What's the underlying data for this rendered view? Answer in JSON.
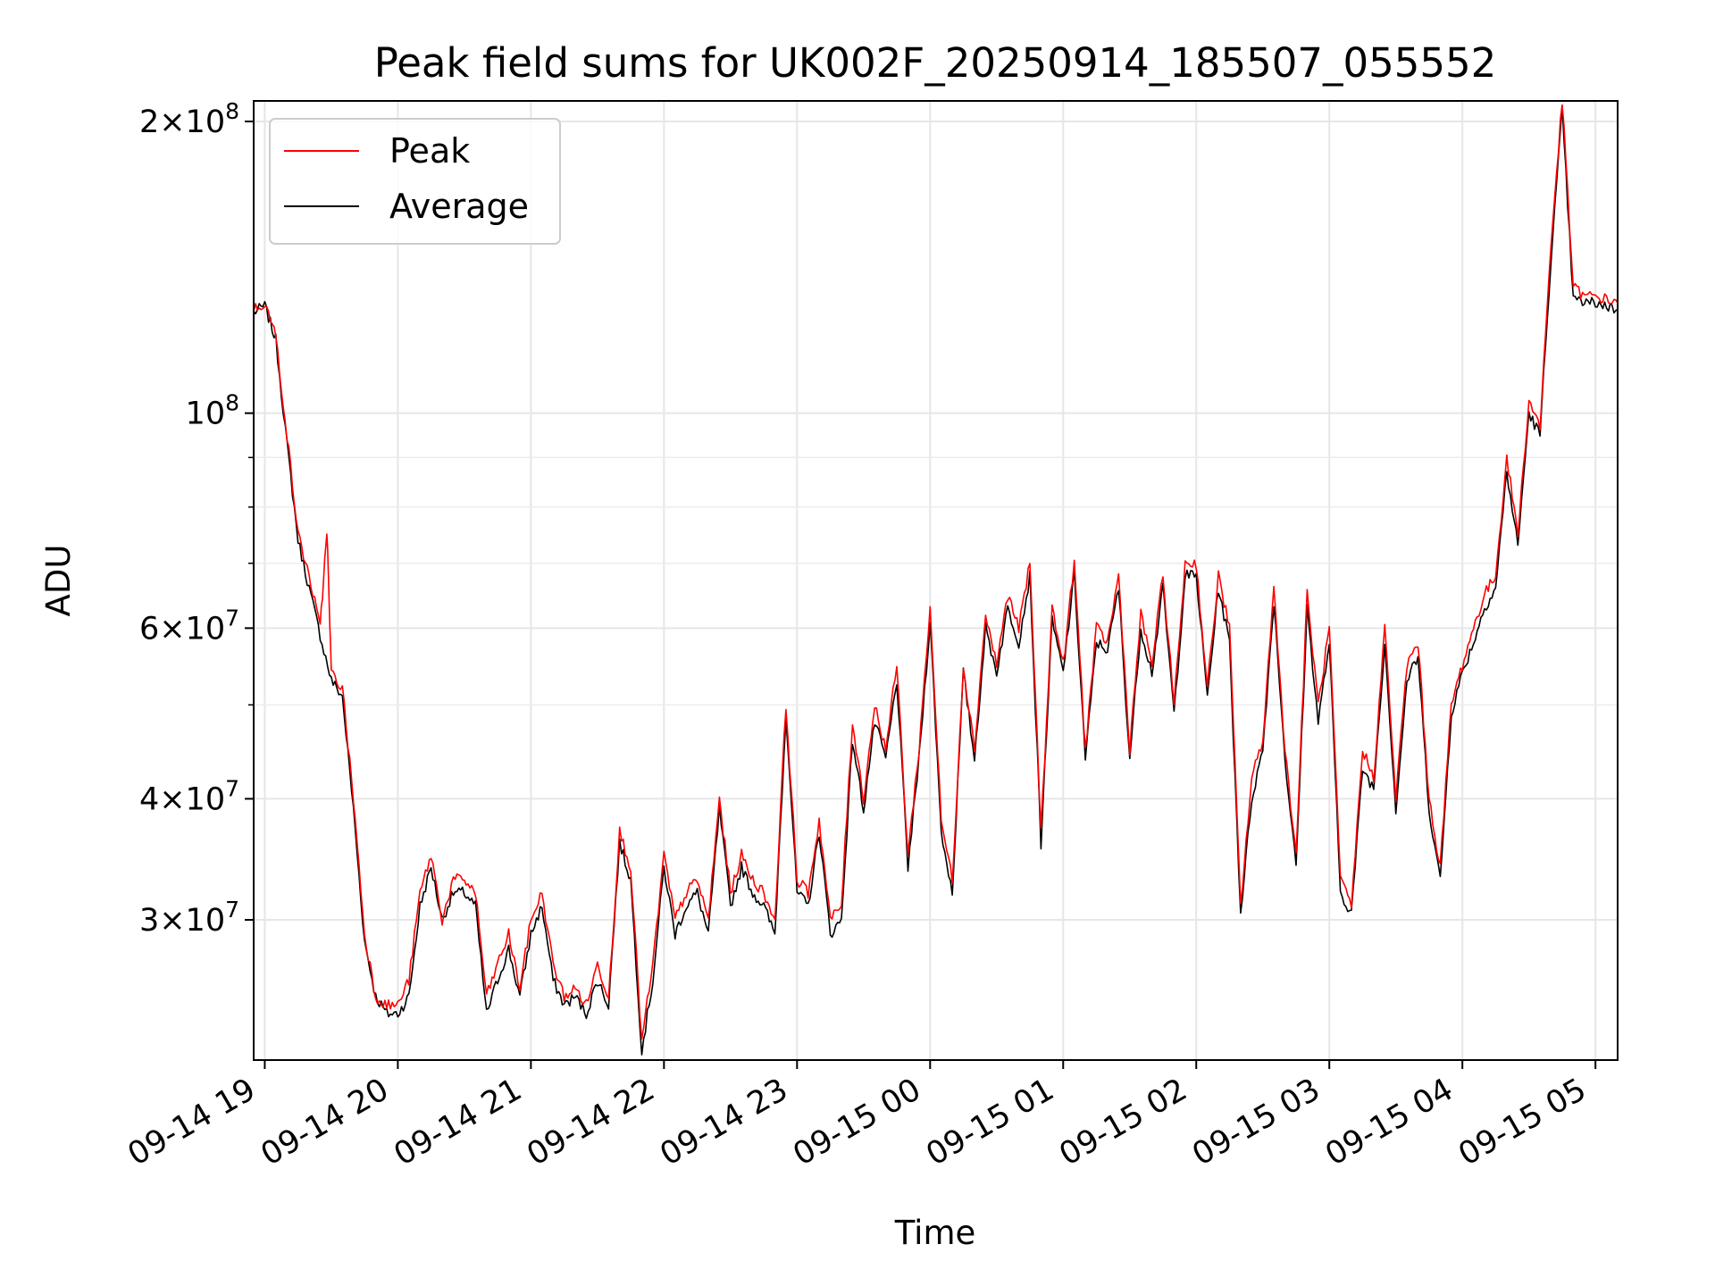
{
  "chart_data": {
    "type": "line",
    "title": "Peak field sums for UK002F_20250914_185507_055552",
    "xlabel": "Time",
    "ylabel": "ADU",
    "x_axis_type": "datetime",
    "xlim": [
      "2025-09-14 18:55",
      "2025-09-15 05:10"
    ],
    "ylim": [
      21500000,
      210000000
    ],
    "y_scale": "log",
    "grid": true,
    "legend_position": "top-left",
    "x_ticks": [
      "09-14 19",
      "09-14 20",
      "09-14 21",
      "09-14 22",
      "09-14 23",
      "09-15 00",
      "09-15 01",
      "09-15 02",
      "09-15 03",
      "09-15 04",
      "09-15 05"
    ],
    "y_tick_labels": [
      {
        "value": 200000000,
        "mantissa": "2",
        "exponent": "8"
      },
      {
        "value": 100000000,
        "mantissa": "",
        "exponent": "8"
      },
      {
        "value": 60000000,
        "mantissa": "6",
        "exponent": "7"
      },
      {
        "value": 40000000,
        "mantissa": "4",
        "exponent": "7"
      },
      {
        "value": 30000000,
        "mantissa": "3",
        "exponent": "7"
      }
    ],
    "series": [
      {
        "name": "Peak",
        "color": "#ff0000",
        "x": [
          "2025-09-14 18:55",
          "2025-09-14 19:00",
          "2025-09-14 19:05",
          "2025-09-14 19:10",
          "2025-09-14 19:15",
          "2025-09-14 19:20",
          "2025-09-14 19:25",
          "2025-09-14 19:28",
          "2025-09-14 19:30",
          "2025-09-14 19:35",
          "2025-09-14 19:40",
          "2025-09-14 19:45",
          "2025-09-14 19:50",
          "2025-09-14 19:55",
          "2025-09-14 20:00",
          "2025-09-14 20:05",
          "2025-09-14 20:10",
          "2025-09-14 20:15",
          "2025-09-14 20:20",
          "2025-09-14 20:25",
          "2025-09-14 20:30",
          "2025-09-14 20:35",
          "2025-09-14 20:40",
          "2025-09-14 20:45",
          "2025-09-14 20:50",
          "2025-09-14 20:55",
          "2025-09-14 21:00",
          "2025-09-14 21:05",
          "2025-09-14 21:10",
          "2025-09-14 21:15",
          "2025-09-14 21:20",
          "2025-09-14 21:25",
          "2025-09-14 21:30",
          "2025-09-14 21:35",
          "2025-09-14 21:40",
          "2025-09-14 21:45",
          "2025-09-14 21:50",
          "2025-09-14 21:55",
          "2025-09-14 22:00",
          "2025-09-14 22:05",
          "2025-09-14 22:10",
          "2025-09-14 22:15",
          "2025-09-14 22:20",
          "2025-09-14 22:25",
          "2025-09-14 22:30",
          "2025-09-14 22:35",
          "2025-09-14 22:40",
          "2025-09-14 22:45",
          "2025-09-14 22:50",
          "2025-09-14 22:55",
          "2025-09-14 23:00",
          "2025-09-14 23:05",
          "2025-09-14 23:10",
          "2025-09-14 23:15",
          "2025-09-14 23:20",
          "2025-09-14 23:25",
          "2025-09-14 23:30",
          "2025-09-14 23:35",
          "2025-09-14 23:40",
          "2025-09-14 23:45",
          "2025-09-14 23:50",
          "2025-09-14 23:55",
          "2025-09-15 00:00",
          "2025-09-15 00:05",
          "2025-09-15 00:10",
          "2025-09-15 00:15",
          "2025-09-15 00:20",
          "2025-09-15 00:25",
          "2025-09-15 00:30",
          "2025-09-15 00:35",
          "2025-09-15 00:40",
          "2025-09-15 00:45",
          "2025-09-15 00:50",
          "2025-09-15 00:55",
          "2025-09-15 01:00",
          "2025-09-15 01:05",
          "2025-09-15 01:10",
          "2025-09-15 01:15",
          "2025-09-15 01:20",
          "2025-09-15 01:25",
          "2025-09-15 01:30",
          "2025-09-15 01:35",
          "2025-09-15 01:40",
          "2025-09-15 01:45",
          "2025-09-15 01:50",
          "2025-09-15 01:55",
          "2025-09-15 02:00",
          "2025-09-15 02:05",
          "2025-09-15 02:10",
          "2025-09-15 02:15",
          "2025-09-15 02:20",
          "2025-09-15 02:25",
          "2025-09-15 02:30",
          "2025-09-15 02:35",
          "2025-09-15 02:40",
          "2025-09-15 02:45",
          "2025-09-15 02:50",
          "2025-09-15 02:55",
          "2025-09-15 03:00",
          "2025-09-15 03:05",
          "2025-09-15 03:10",
          "2025-09-15 03:15",
          "2025-09-15 03:20",
          "2025-09-15 03:25",
          "2025-09-15 03:30",
          "2025-09-15 03:35",
          "2025-09-15 03:40",
          "2025-09-15 03:45",
          "2025-09-15 03:50",
          "2025-09-15 03:55",
          "2025-09-15 04:00",
          "2025-09-15 04:05",
          "2025-09-15 04:10",
          "2025-09-15 04:15",
          "2025-09-15 04:20",
          "2025-09-15 04:25",
          "2025-09-15 04:30",
          "2025-09-15 04:35",
          "2025-09-15 04:40",
          "2025-09-15 04:45",
          "2025-09-15 04:50",
          "2025-09-15 04:55",
          "2025-09-15 05:00",
          "2025-09-15 05:05",
          "2025-09-15 05:10"
        ],
        "values": [
          128000000,
          130000000,
          120000000,
          95000000,
          75000000,
          68000000,
          60000000,
          76000000,
          54000000,
          52000000,
          40000000,
          29000000,
          25000000,
          24500000,
          24500000,
          26000000,
          32000000,
          35000000,
          30000000,
          33000000,
          33000000,
          32000000,
          25000000,
          27000000,
          29000000,
          25500000,
          30000000,
          32000000,
          27000000,
          25000000,
          25500000,
          24500000,
          27000000,
          25000000,
          37000000,
          34000000,
          22500000,
          27000000,
          35000000,
          30000000,
          32000000,
          33000000,
          30000000,
          40000000,
          32000000,
          35000000,
          33000000,
          32000000,
          30000000,
          50000000,
          33000000,
          32000000,
          38000000,
          30000000,
          31000000,
          48000000,
          40000000,
          50000000,
          45000000,
          55000000,
          35000000,
          45000000,
          63000000,
          38000000,
          33000000,
          55000000,
          45000000,
          62000000,
          55000000,
          65000000,
          60000000,
          70000000,
          37000000,
          63000000,
          55000000,
          70000000,
          45000000,
          60000000,
          58000000,
          68000000,
          45000000,
          62000000,
          55000000,
          68000000,
          50000000,
          70000000,
          70000000,
          52000000,
          68000000,
          60000000,
          31000000,
          42000000,
          46000000,
          66000000,
          45000000,
          35000000,
          65000000,
          50000000,
          60000000,
          33000000,
          31000000,
          45000000,
          42000000,
          60000000,
          40000000,
          55000000,
          58000000,
          40000000,
          34000000,
          50000000,
          55000000,
          60000000,
          65000000,
          68000000,
          90000000,
          75000000,
          103000000,
          97000000,
          150000000,
          210000000,
          135000000,
          132000000,
          132000000,
          131000000,
          130000000
        ],
        "note_spikes": true
      },
      {
        "name": "Average",
        "color": "#000000",
        "x": [
          "2025-09-14 18:55",
          "2025-09-14 19:00",
          "2025-09-14 19:05",
          "2025-09-14 19:10",
          "2025-09-14 19:15",
          "2025-09-14 19:20",
          "2025-09-14 19:25",
          "2025-09-14 19:30",
          "2025-09-14 19:35",
          "2025-09-14 19:40",
          "2025-09-14 19:45",
          "2025-09-14 19:50",
          "2025-09-14 19:55",
          "2025-09-14 20:00",
          "2025-09-14 20:05",
          "2025-09-14 20:10",
          "2025-09-14 20:15",
          "2025-09-14 20:20",
          "2025-09-14 20:25",
          "2025-09-14 20:30",
          "2025-09-14 20:35",
          "2025-09-14 20:40",
          "2025-09-14 20:45",
          "2025-09-14 20:50",
          "2025-09-14 20:55",
          "2025-09-14 21:00",
          "2025-09-14 21:05",
          "2025-09-14 21:10",
          "2025-09-14 21:15",
          "2025-09-14 21:20",
          "2025-09-14 21:25",
          "2025-09-14 21:30",
          "2025-09-14 21:35",
          "2025-09-14 21:40",
          "2025-09-14 21:45",
          "2025-09-14 21:50",
          "2025-09-14 21:55",
          "2025-09-14 22:00",
          "2025-09-14 22:05",
          "2025-09-14 22:10",
          "2025-09-14 22:15",
          "2025-09-14 22:20",
          "2025-09-14 22:25",
          "2025-09-14 22:30",
          "2025-09-14 22:35",
          "2025-09-14 22:40",
          "2025-09-14 22:45",
          "2025-09-14 22:50",
          "2025-09-14 22:55",
          "2025-09-14 23:00",
          "2025-09-14 23:05",
          "2025-09-14 23:10",
          "2025-09-14 23:15",
          "2025-09-14 23:20",
          "2025-09-14 23:25",
          "2025-09-14 23:30",
          "2025-09-14 23:35",
          "2025-09-14 23:40",
          "2025-09-14 23:45",
          "2025-09-14 23:50",
          "2025-09-14 23:55",
          "2025-09-15 00:00",
          "2025-09-15 00:05",
          "2025-09-15 00:10",
          "2025-09-15 00:15",
          "2025-09-15 00:20",
          "2025-09-15 00:25",
          "2025-09-15 00:30",
          "2025-09-15 00:35",
          "2025-09-15 00:40",
          "2025-09-15 00:45",
          "2025-09-15 00:50",
          "2025-09-15 00:55",
          "2025-09-15 01:00",
          "2025-09-15 01:05",
          "2025-09-15 01:10",
          "2025-09-15 01:15",
          "2025-09-15 01:20",
          "2025-09-15 01:25",
          "2025-09-15 01:30",
          "2025-09-15 01:35",
          "2025-09-15 01:40",
          "2025-09-15 01:45",
          "2025-09-15 01:50",
          "2025-09-15 01:55",
          "2025-09-15 02:00",
          "2025-09-15 02:05",
          "2025-09-15 02:10",
          "2025-09-15 02:15",
          "2025-09-15 02:20",
          "2025-09-15 02:25",
          "2025-09-15 02:30",
          "2025-09-15 02:35",
          "2025-09-15 02:40",
          "2025-09-15 02:45",
          "2025-09-15 02:50",
          "2025-09-15 02:55",
          "2025-09-15 03:00",
          "2025-09-15 03:05",
          "2025-09-15 03:10",
          "2025-09-15 03:15",
          "2025-09-15 03:20",
          "2025-09-15 03:25",
          "2025-09-15 03:30",
          "2025-09-15 03:35",
          "2025-09-15 03:40",
          "2025-09-15 03:45",
          "2025-09-15 03:50",
          "2025-09-15 03:55",
          "2025-09-15 04:00",
          "2025-09-15 04:05",
          "2025-09-15 04:10",
          "2025-09-15 04:15",
          "2025-09-15 04:20",
          "2025-09-15 04:25",
          "2025-09-15 04:30",
          "2025-09-15 04:35",
          "2025-09-15 04:40",
          "2025-09-15 04:45",
          "2025-09-15 04:50",
          "2025-09-15 04:55",
          "2025-09-15 05:00",
          "2025-09-15 05:05",
          "2025-09-15 05:10"
        ],
        "values": [
          127000000,
          129000000,
          119000000,
          93000000,
          74000000,
          66000000,
          59000000,
          53000000,
          51000000,
          39000000,
          28500000,
          25000000,
          24000000,
          24000000,
          25000000,
          31000000,
          34000000,
          30000000,
          32000000,
          32000000,
          31000000,
          24000000,
          26000000,
          28000000,
          25000000,
          29000000,
          31000000,
          26000000,
          24500000,
          25000000,
          24000000,
          26000000,
          24500000,
          36000000,
          33000000,
          22000000,
          26000000,
          34000000,
          29000000,
          31000000,
          32000000,
          29000000,
          39000000,
          31000000,
          34000000,
          32000000,
          31000000,
          29000000,
          49000000,
          32000000,
          31000000,
          37000000,
          29000000,
          30000000,
          46000000,
          39000000,
          48000000,
          44000000,
          53000000,
          34000000,
          44000000,
          61000000,
          37000000,
          32000000,
          54000000,
          44000000,
          60000000,
          54000000,
          63000000,
          58000000,
          68000000,
          36000000,
          61000000,
          54000000,
          68000000,
          44000000,
          58000000,
          57000000,
          66000000,
          44000000,
          60000000,
          54000000,
          66000000,
          49000000,
          68000000,
          68000000,
          51000000,
          66000000,
          58000000,
          30500000,
          40000000,
          45000000,
          64000000,
          44000000,
          34000000,
          63000000,
          48000000,
          58000000,
          32000000,
          30500000,
          43000000,
          41000000,
          58000000,
          39000000,
          53000000,
          56000000,
          39000000,
          33000000,
          49000000,
          54000000,
          58000000,
          63000000,
          66000000,
          87000000,
          73000000,
          100000000,
          95000000,
          145000000,
          205000000,
          131000000,
          130000000,
          130000000,
          129000000,
          128000000
        ]
      }
    ]
  }
}
